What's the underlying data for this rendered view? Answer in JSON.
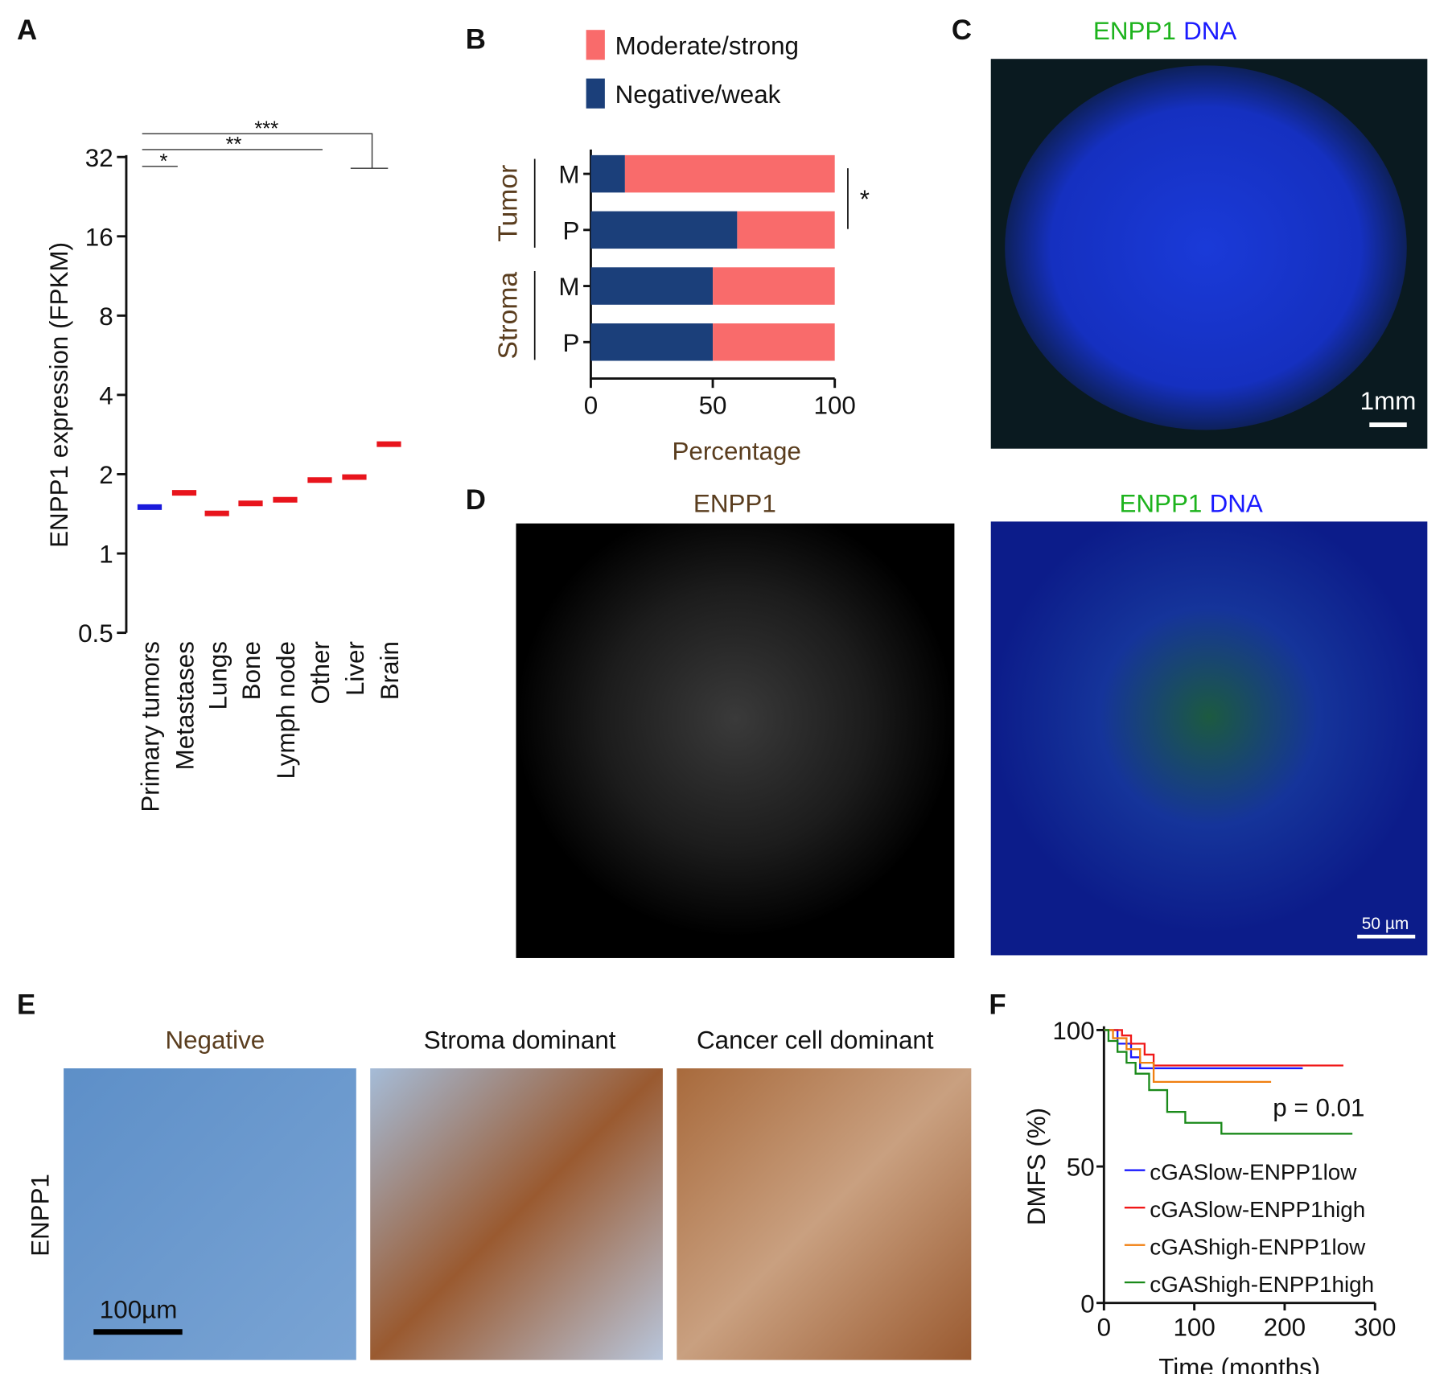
{
  "chart_data": [
    {
      "type": "dot",
      "label": "A",
      "ylabel": "ENPP1 expression (FPKM)",
      "log_scale": "y",
      "categories": [
        "Primary tumors",
        "Metastases",
        "Lungs",
        "Bone",
        "Lymph node",
        "Other",
        "Liver",
        "Brain"
      ],
      "values": [
        1.5,
        1.7,
        1.42,
        1.55,
        1.6,
        1.9,
        1.95,
        2.6
      ],
      "colors": [
        "#1a1adb",
        "#e8141c",
        "#e8141c",
        "#e8141c",
        "#e8141c",
        "#e8141c",
        "#e8141c",
        "#e8141c"
      ],
      "ylim": [
        0.5,
        32
      ],
      "yticks": [
        0.5,
        1,
        2,
        4,
        8,
        16,
        32
      ],
      "annotations": [
        "*",
        "**",
        "***"
      ]
    },
    {
      "type": "hbar_stacked",
      "label": "B",
      "xlabel": "Percentage",
      "categories": [
        "M",
        "P",
        "M",
        "P"
      ],
      "groups": [
        "Tumor",
        "Stroma"
      ],
      "series": [
        {
          "name": "Negative/weak",
          "color": "#1b3f7a",
          "values": [
            14,
            60,
            50,
            50
          ]
        },
        {
          "name": "Moderate/strong",
          "color": "#f96b6b",
          "values": [
            86,
            40,
            50,
            50
          ]
        }
      ],
      "xlim": [
        0,
        100
      ],
      "xticks": [
        0,
        50,
        100
      ],
      "annotations": [
        "*"
      ]
    },
    {
      "type": "survival",
      "label": "F",
      "xlabel": "Time (months)",
      "ylabel": "DMFS (%)",
      "annotation": "p = 0.01",
      "series": [
        {
          "name": "cGASlow-ENPP1low",
          "color": "#1a1aff",
          "x": [
            0,
            15,
            30,
            40,
            220
          ],
          "values": [
            100,
            95,
            90,
            86,
            86
          ]
        },
        {
          "name": "cGASlow-ENPP1high",
          "color": "#f01818",
          "x": [
            0,
            20,
            30,
            45,
            55,
            265
          ],
          "values": [
            100,
            98,
            95,
            91,
            87,
            87
          ]
        },
        {
          "name": "cGAShigh-ENPP1low",
          "color": "#f07f10",
          "x": [
            0,
            10,
            25,
            40,
            55,
            185
          ],
          "values": [
            100,
            97,
            93,
            88,
            81,
            81
          ]
        },
        {
          "name": "cGAShigh-ENPP1high",
          "color": "#1a8a1a",
          "x": [
            0,
            5,
            15,
            25,
            35,
            50,
            70,
            90,
            130,
            275
          ],
          "values": [
            100,
            96,
            92,
            88,
            84,
            78,
            70,
            66,
            62,
            62
          ]
        }
      ],
      "xlim": [
        0,
        300
      ],
      "xticks": [
        0,
        100,
        200,
        300
      ],
      "ylim": [
        0,
        100
      ],
      "yticks": [
        0,
        50,
        100
      ]
    }
  ],
  "images": {
    "C": {
      "label": "C",
      "title": [
        "ENPP1",
        "DNA"
      ],
      "scale": "1mm"
    },
    "D": {
      "label": "D",
      "left_title": "ENPP1",
      "right_title": [
        "ENPP1",
        "DNA"
      ],
      "scale": "50 µm"
    },
    "E": {
      "label": "E",
      "row": "ENPP1",
      "titles": [
        "Negative",
        "Stroma dominant",
        "Cancer cell dominant"
      ],
      "scale": "100µm"
    }
  }
}
